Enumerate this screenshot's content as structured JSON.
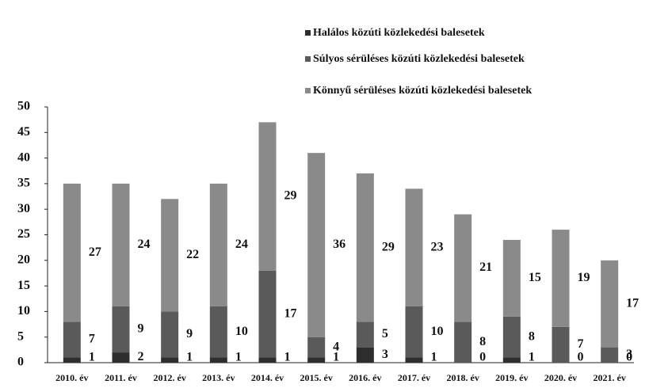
{
  "chart_data": {
    "type": "stacked_bar",
    "categories": [
      "2010. év",
      "2011. év",
      "2012. év",
      "2013. év",
      "2014. év",
      "2015. év",
      "2016. év",
      "2017. év",
      "2018. év",
      "2019. év",
      "2020. év",
      "2021. év"
    ],
    "series": [
      {
        "name": "Halálos közúti közlekedési balesetek",
        "color": "#2e2e2e",
        "values": [
          1,
          2,
          1,
          1,
          1,
          1,
          3,
          1,
          0,
          1,
          0,
          0
        ]
      },
      {
        "name": "Súlyos sérüléses közúti közlekedési balesetek",
        "color": "#5a5a5a",
        "values": [
          7,
          9,
          9,
          10,
          17,
          4,
          5,
          10,
          8,
          8,
          7,
          3
        ]
      },
      {
        "name": "Könnyű sérüléses közúti közlekedési balesetek",
        "color": "#8a8a8a",
        "values": [
          27,
          24,
          22,
          24,
          29,
          36,
          29,
          23,
          21,
          15,
          19,
          17
        ]
      }
    ],
    "ylim": [
      0,
      50
    ],
    "yticks": [
      0,
      5,
      10,
      15,
      20,
      25,
      30,
      35,
      40,
      45,
      50
    ]
  }
}
